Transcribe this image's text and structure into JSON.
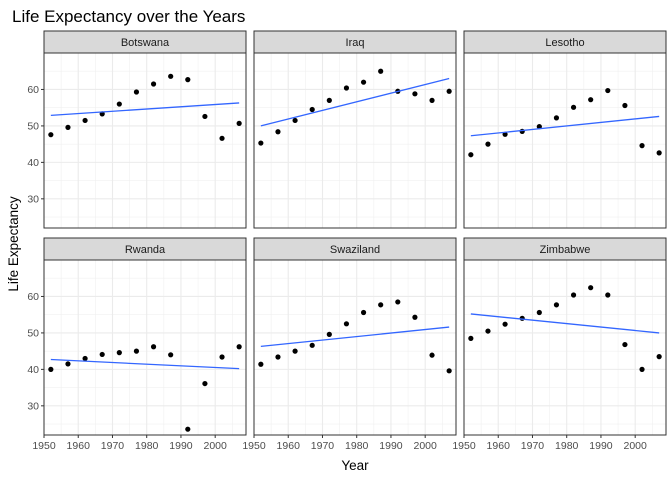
{
  "chart_data": {
    "type": "scatter",
    "title": "Life Expectancy over the Years",
    "xlabel": "Year",
    "ylabel": "Life Expectancy",
    "xlim": [
      1950,
      2009
    ],
    "ylim": [
      22,
      70
    ],
    "x_ticks": [
      "1950",
      "1960",
      "1970",
      "1980",
      "1990",
      "2000"
    ],
    "y_ticks": [
      "30",
      "40",
      "50",
      "60"
    ],
    "grid": true,
    "point_color": "#000000",
    "line_color": "#3366ff",
    "x": [
      1952,
      1957,
      1962,
      1967,
      1972,
      1977,
      1982,
      1987,
      1992,
      1997,
      2002,
      2007
    ],
    "panels": [
      {
        "name": "Botswana",
        "y": [
          47.6,
          49.6,
          51.5,
          53.3,
          56.0,
          59.3,
          61.5,
          63.6,
          62.7,
          52.6,
          46.6,
          50.7
        ],
        "fit": [
          [
            1952,
            52.9
          ],
          [
            2007,
            56.3
          ]
        ]
      },
      {
        "name": "Iraq",
        "y": [
          45.3,
          48.4,
          51.5,
          54.5,
          57.0,
          60.4,
          62.0,
          65.0,
          59.5,
          58.8,
          57.0,
          59.5
        ],
        "fit": [
          [
            1952,
            50.0
          ],
          [
            2007,
            63.0
          ]
        ]
      },
      {
        "name": "Lesotho",
        "y": [
          42.1,
          45.0,
          47.7,
          48.5,
          49.8,
          52.2,
          55.1,
          57.2,
          59.7,
          55.6,
          44.6,
          42.6
        ],
        "fit": [
          [
            1952,
            47.3
          ],
          [
            2007,
            52.6
          ]
        ]
      },
      {
        "name": "Rwanda",
        "y": [
          40.0,
          41.5,
          43.0,
          44.1,
          44.6,
          45.0,
          46.2,
          44.0,
          23.6,
          36.1,
          43.4,
          46.2
        ],
        "fit": [
          [
            1952,
            42.7
          ],
          [
            2007,
            40.2
          ]
        ]
      },
      {
        "name": "Swaziland",
        "y": [
          41.4,
          43.4,
          45.0,
          46.6,
          49.6,
          52.5,
          55.6,
          57.7,
          58.5,
          54.3,
          43.9,
          39.6
        ],
        "fit": [
          [
            1952,
            46.3
          ],
          [
            2007,
            51.6
          ]
        ]
      },
      {
        "name": "Zimbabwe",
        "y": [
          48.5,
          50.5,
          52.4,
          54.0,
          55.6,
          57.7,
          60.4,
          62.4,
          60.4,
          46.8,
          40.0,
          43.5
        ],
        "fit": [
          [
            1952,
            55.2
          ],
          [
            2007,
            50.0
          ]
        ]
      }
    ]
  }
}
